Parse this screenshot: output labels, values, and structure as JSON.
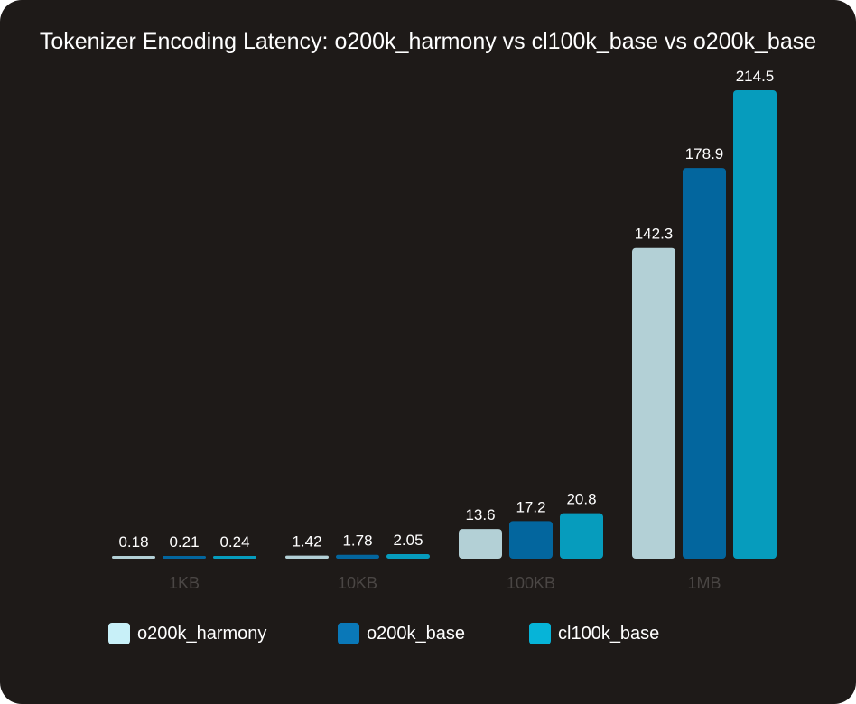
{
  "chart_data": {
    "type": "bar",
    "title": "Tokenizer Encoding Latency: o200k_harmony vs cl100k_base vs o200k_base",
    "categories": [
      "1KB",
      "10KB",
      "100KB",
      "1MB"
    ],
    "series": [
      {
        "name": "o200k_harmony",
        "values": [
          0.18,
          1.42,
          13.6,
          142.3
        ],
        "color": "#b3d0d6",
        "legend_color": "#c8f0f8"
      },
      {
        "name": "o200k_base",
        "values": [
          0.21,
          1.78,
          17.2,
          178.9
        ],
        "color": "#03669e",
        "legend_color": "#0a78b8"
      },
      {
        "name": "cl100k_base",
        "values": [
          0.24,
          2.05,
          20.8,
          214.5
        ],
        "color": "#069cbd",
        "legend_color": "#06b4d8"
      }
    ],
    "ylim": [
      0,
      214.5
    ],
    "grid": false,
    "legend_placement": "bottom",
    "background": "#1e1a18"
  }
}
